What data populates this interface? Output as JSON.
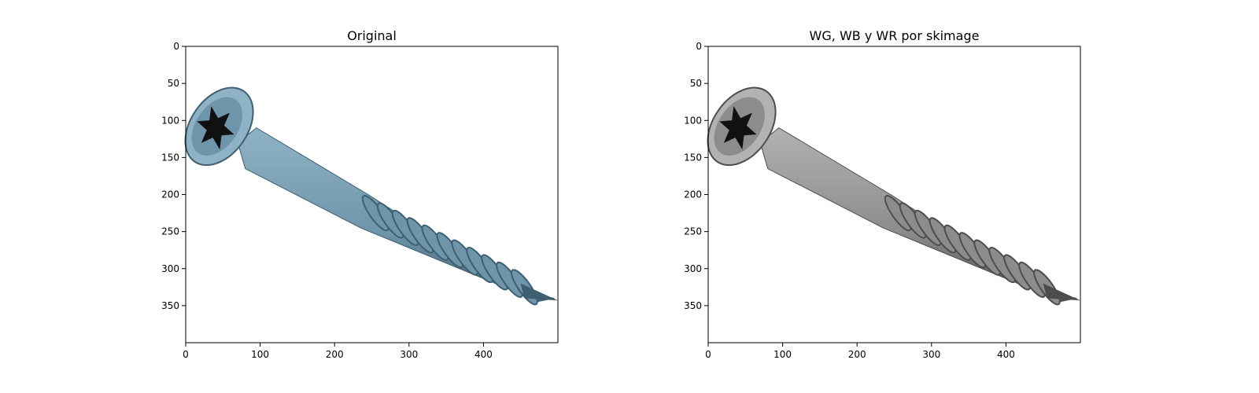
{
  "figure": {
    "panels": [
      {
        "title": "Original",
        "mode": "color",
        "x_ticks": [
          "0",
          "100",
          "200",
          "300",
          "400"
        ],
        "y_ticks": [
          "0",
          "50",
          "100",
          "150",
          "200",
          "250",
          "300",
          "350"
        ]
      },
      {
        "title": "WG, WB y WR por skimage",
        "mode": "gray",
        "x_ticks": [
          "0",
          "100",
          "200",
          "300",
          "400"
        ],
        "y_ticks": [
          "0",
          "50",
          "100",
          "150",
          "200",
          "250",
          "300",
          "350"
        ]
      }
    ],
    "colors": {
      "color_body_light": "#8fb3c6",
      "color_body_mid": "#6f95aa",
      "color_body_dark": "#3e5f70",
      "gray_body_light": "#b2b2b2",
      "gray_body_mid": "#8c8c8c",
      "gray_body_dark": "#4d4d4d"
    },
    "image": {
      "width": 500,
      "height": 400
    }
  }
}
